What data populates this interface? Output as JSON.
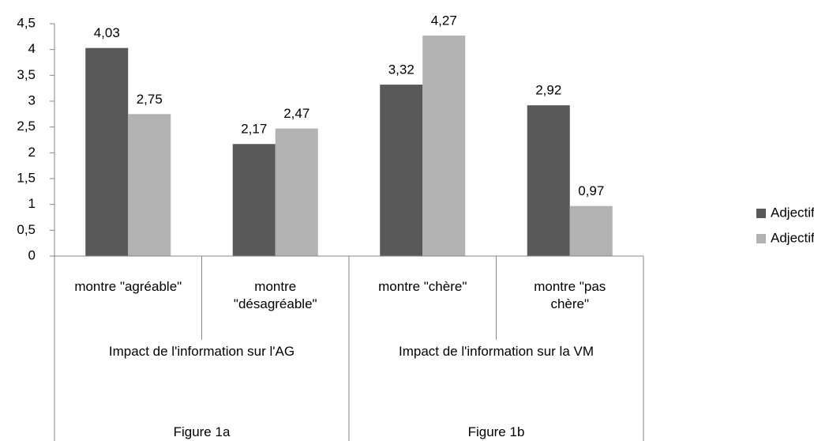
{
  "chart_data": {
    "type": "bar",
    "categories": [
      "montre \"agréable\"",
      "montre \"désagréable\"",
      "montre \"chère\"",
      "montre \"pas chère\""
    ],
    "category_groups": [
      "Impact de l'information sur  l'AG",
      "Impact de l'information sur la VM"
    ],
    "figure_labels": [
      "Figure 1a",
      "Figure 1b"
    ],
    "series": [
      {
        "name": "Adjectifs AG",
        "color": "#595959",
        "values": [
          4.03,
          2.17,
          3.32,
          2.92
        ],
        "value_labels": [
          "4,03",
          "2,17",
          "3,32",
          "2,92"
        ]
      },
      {
        "name": "Adjectifs VM",
        "color": "#b2b2b2",
        "values": [
          2.75,
          2.47,
          4.27,
          0.97
        ],
        "value_labels": [
          "2,75",
          "2,47",
          "4,27",
          "0,97"
        ]
      }
    ],
    "ylim": [
      0,
      4.5
    ],
    "yticks": [
      0,
      {
        "value": 0.5,
        "label": "0,5"
      },
      1,
      {
        "value": 1.5,
        "label": "1,5"
      },
      2,
      {
        "value": 2.5,
        "label": "2,5"
      },
      3,
      {
        "value": 3.5,
        "label": "3,5"
      },
      4,
      {
        "value": 4.5,
        "label": "4,5"
      }
    ],
    "legend": "right"
  }
}
